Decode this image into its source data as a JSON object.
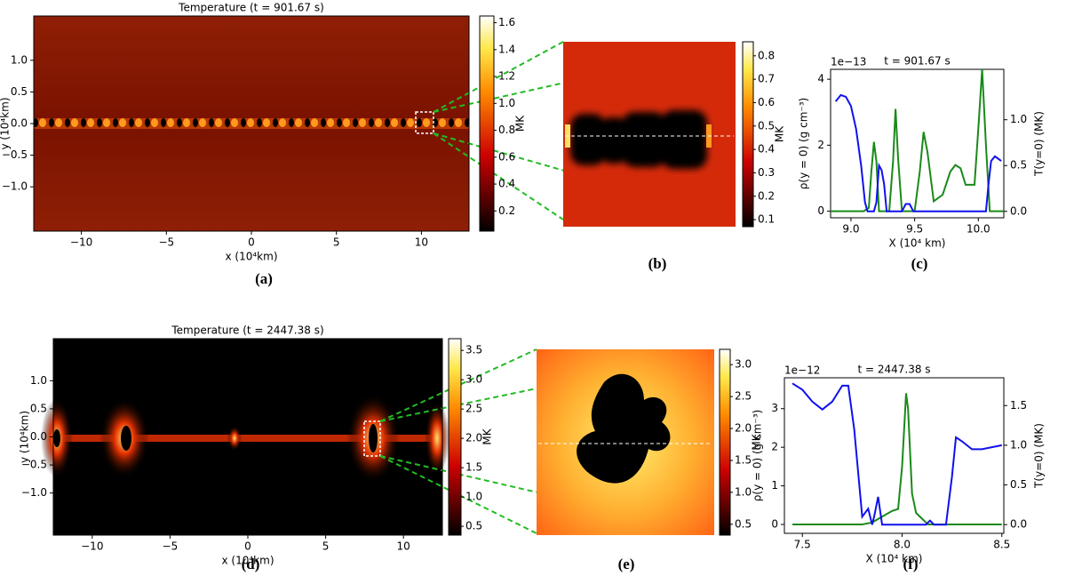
{
  "chart_data": [
    {
      "type": "heatmap",
      "title": "Temperature (t = 901.67 s)",
      "xlabel": "x (10⁴km)",
      "ylabel": "y (10⁴km)",
      "label": "(a)",
      "xlim": [
        -12.8,
        12.8
      ],
      "ylim": [
        -1.7,
        1.7
      ],
      "xticks": [
        {
          "value": -10,
          "label": "−10"
        },
        {
          "value": -5,
          "label": "−5"
        },
        0,
        5,
        10
      ],
      "yticks": [
        {
          "value": -1,
          "label": "−1.0"
        },
        {
          "value": -0.5,
          "label": "−0.5"
        },
        {
          "value": 0,
          "label": "0.0"
        },
        0.5,
        {
          "value": 1,
          "label": "1.0"
        }
      ],
      "colorbar": {
        "label": "MK",
        "lim": [
          0.05,
          1.65
        ],
        "ticks": [
          0.2,
          0.4,
          0.6,
          0.8,
          {
            "value": 1,
            "label": "1.0"
          },
          1.2,
          1.4,
          1.6
        ]
      }
    },
    {
      "type": "heatmap",
      "label": "(b)",
      "colorbar": {
        "label": "MK",
        "lim": [
          0.07,
          0.86
        ],
        "ticks": [
          0.1,
          0.2,
          0.3,
          0.4,
          0.5,
          0.6,
          0.7,
          0.8
        ]
      }
    },
    {
      "type": "line",
      "title": "t = 901.67 s",
      "xlabel": "X (10⁴ km)",
      "ylabel": "ρ(y = 0) (g cm⁻³)",
      "y2label": "T(y=0) (MK)",
      "offset_label": "1e−13",
      "label": "(c)",
      "xlim": [
        8.84,
        10.2
      ],
      "ylim": [
        -0.2,
        4.3
      ],
      "y2lim": [
        -0.07,
        1.55
      ],
      "xticks": [
        {
          "value": 9,
          "label": "9.0"
        },
        9.5,
        {
          "value": 10,
          "label": "10.0"
        }
      ],
      "yticks": [
        0,
        2,
        4
      ],
      "y2ticks": [
        {
          "value": 0,
          "label": "0.0"
        },
        0.5,
        {
          "value": 1,
          "label": "1.0"
        }
      ],
      "series": [
        {
          "color": "#1a8a1a",
          "axis": "y",
          "x": [
            8.84,
            9.1,
            9.14,
            9.16,
            9.18,
            9.2,
            9.22,
            9.3,
            9.33,
            9.35,
            9.37,
            9.4,
            9.5,
            9.54,
            9.57,
            9.6,
            9.65,
            9.72,
            9.78,
            9.82,
            9.86,
            9.9,
            9.97,
            10.0,
            10.03,
            10.06,
            10.09,
            10.2
          ],
          "values": [
            0,
            0,
            0.1,
            1.2,
            2.1,
            1.5,
            0,
            0,
            1.5,
            3.1,
            1.6,
            0,
            0,
            1.2,
            2.4,
            1.8,
            0.3,
            0.5,
            1.2,
            1.4,
            1.3,
            0.8,
            0.8,
            2.5,
            4.3,
            2.0,
            0,
            0
          ]
        },
        {
          "color": "#1010ee",
          "axis": "y2",
          "x": [
            8.88,
            8.92,
            8.96,
            9.0,
            9.04,
            9.08,
            9.11,
            9.13,
            9.18,
            9.2,
            9.22,
            9.24,
            9.26,
            9.28,
            9.3,
            9.4,
            9.43,
            9.46,
            9.49,
            10.06,
            10.08,
            10.1,
            10.13,
            10.18
          ],
          "values": [
            1.2,
            1.27,
            1.25,
            1.15,
            0.9,
            0.5,
            0.1,
            0,
            0,
            0.1,
            0.5,
            0.45,
            0.3,
            0,
            0,
            0,
            0.08,
            0.08,
            0,
            0,
            0.3,
            0.55,
            0.6,
            0.55
          ]
        }
      ]
    },
    {
      "type": "heatmap",
      "title": "Temperature (t = 2447.38 s)",
      "xlabel": "x (10⁴km)",
      "ylabel": "y (10⁴km)",
      "label": "(d)",
      "xlim": [
        -12.5,
        12.5
      ],
      "ylim": [
        -1.75,
        1.75
      ],
      "xticks": [
        {
          "value": -10,
          "label": "−10"
        },
        {
          "value": -5,
          "label": "−5"
        },
        0,
        5,
        10
      ],
      "yticks": [
        {
          "value": -1,
          "label": "−1.0"
        },
        {
          "value": -0.5,
          "label": "−0.5"
        },
        {
          "value": 0,
          "label": "0.0"
        },
        0.5,
        {
          "value": 1,
          "label": "1.0"
        }
      ],
      "colorbar": {
        "label": "MK",
        "lim": [
          0.35,
          3.7
        ],
        "ticks": [
          0.5,
          {
            "value": 1,
            "label": "1.0"
          },
          1.5,
          {
            "value": 2,
            "label": "2.0"
          },
          2.5,
          {
            "value": 3,
            "label": "3.0"
          },
          3.5
        ]
      }
    },
    {
      "type": "heatmap",
      "label": "(e)",
      "colorbar": {
        "label": "MK",
        "lim": [
          0.33,
          3.24
        ],
        "ticks": [
          0.5,
          {
            "value": 1,
            "label": "1.0"
          },
          1.5,
          {
            "value": 2,
            "label": "2.0"
          },
          2.5,
          {
            "value": 3,
            "label": "3.0"
          }
        ]
      }
    },
    {
      "type": "line",
      "title": "t = 2447.38 s",
      "xlabel": "X (10⁴ km)",
      "ylabel": "ρ(y = 0) (g cm⁻³)",
      "y2label": "T(y=0) (MK)",
      "offset_label": "1e−12",
      "label": "(f)",
      "xlim": [
        7.41,
        8.51
      ],
      "ylim": [
        -0.23,
        3.8
      ],
      "y2lim": [
        -0.11,
        1.85
      ],
      "xticks": [
        7.5,
        {
          "value": 8,
          "label": "8.0"
        },
        8.5
      ],
      "yticks": [
        0,
        1,
        2,
        3
      ],
      "y2ticks": [
        {
          "value": 0,
          "label": "0.0"
        },
        0.5,
        {
          "value": 1,
          "label": "1.0"
        },
        1.5
      ],
      "series": [
        {
          "color": "#1a8a1a",
          "axis": "y",
          "x": [
            7.45,
            7.8,
            7.85,
            7.9,
            7.95,
            7.98,
            8.0,
            8.02,
            8.03,
            8.05,
            8.07,
            8.1,
            8.13,
            8.5
          ],
          "values": [
            0,
            0,
            0.05,
            0.2,
            0.35,
            0.4,
            1.5,
            3.4,
            3.0,
            0.8,
            0.3,
            0.15,
            0,
            0
          ]
        },
        {
          "color": "#1010ee",
          "axis": "y2",
          "x": [
            7.45,
            7.5,
            7.55,
            7.6,
            7.65,
            7.7,
            7.73,
            7.76,
            7.8,
            7.83,
            7.85,
            7.86,
            7.88,
            7.9,
            8.12,
            8.14,
            8.16,
            8.22,
            8.25,
            8.27,
            8.3,
            8.35,
            8.4,
            8.5
          ],
          "values": [
            1.78,
            1.7,
            1.55,
            1.45,
            1.55,
            1.75,
            1.75,
            1.2,
            0.1,
            0.2,
            0,
            0.1,
            0.35,
            0,
            0,
            0.05,
            0,
            0,
            0.6,
            1.1,
            1.05,
            0.95,
            0.95,
            1.0
          ]
        }
      ]
    }
  ]
}
